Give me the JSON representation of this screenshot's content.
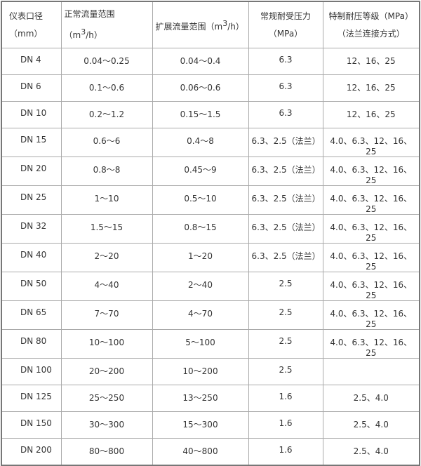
{
  "header": {
    "col1": "仪表口径（mm）",
    "col2_prefix": "正常流量范围（m",
    "col2_sup": "3",
    "col2_suffix": "/h）",
    "col3_prefix": "扩展流量范围（m",
    "col3_sup": "3",
    "col3_suffix": "/h）",
    "col4": "常规耐受压力（MPa）",
    "col5": "特制耐压等级（MPa）（法兰连接方式）"
  },
  "rows": [
    [
      "DN 4",
      "0.04～0.25",
      "0.04～0.4",
      "6.3",
      "12、16、25"
    ],
    [
      "DN 6",
      "0.1～0.6",
      "0.06～0.6",
      "6.3",
      "12、16、25"
    ],
    [
      "DN 10",
      "0.2～1.2",
      "0.15～1.5",
      "6.3",
      "12、16、25"
    ],
    [
      "DN 15",
      "0.6～6",
      "0.4～8",
      "6.3、2.5（法兰）",
      "4.0、6.3、12、16、25"
    ],
    [
      "DN 20",
      "0.8～8",
      "0.45～9",
      "6.3、2.5（法兰）",
      "4.0、6.3、12、16、25"
    ],
    [
      "DN 25",
      "1～10",
      "0.5～10",
      "6.3、2.5（法兰）",
      "4.0、6.3、12、16、25"
    ],
    [
      "DN 32",
      "1.5～15",
      "0.8～15",
      "6.3、2.5（法兰）",
      "4.0、6.3、12、16、25"
    ],
    [
      "DN 40",
      "2～20",
      "1～20",
      "6.3、2.5（法兰）",
      "4.0、6.3、12、16、25"
    ],
    [
      "DN 50",
      "4～40",
      "2～40",
      "2.5",
      "4.0、6.3、12、16、25"
    ],
    [
      "DN 65",
      "7～70",
      "4～70",
      "2.5",
      "4.0、6.3、12、16、25"
    ],
    [
      "DN 80",
      "10～100",
      "5～100",
      "2.5",
      "4.0、6.3、12、16、25"
    ],
    [
      "DN 100",
      "20～200",
      "10～200",
      "2.5",
      ""
    ],
    [
      "DN 125",
      "25～250",
      "13～250",
      "1.6",
      "2.5、4.0"
    ],
    [
      "DN 150",
      "30～300",
      "15～300",
      "1.6",
      "2.5、4.0"
    ],
    [
      "DN 200",
      "80～800",
      "40～800",
      "1.6",
      "2.5、4.0"
    ]
  ]
}
